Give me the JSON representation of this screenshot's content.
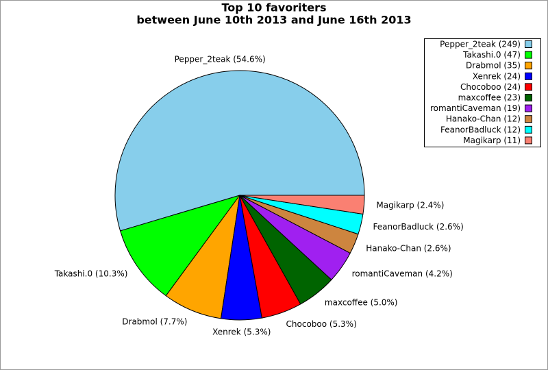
{
  "chart_data": {
    "type": "pie",
    "title": "Top 10 favoriters",
    "subtitle": "between June 10th 2013 and June 16th 2013",
    "values": [
      249,
      47,
      35,
      24,
      24,
      23,
      19,
      12,
      12,
      11
    ],
    "slice_labels": [
      "Pepper_2teak (54.6%)",
      "Takashi.0 (10.3%)",
      "Drabmol (7.7%)",
      "Xenrek (5.3%)",
      "Chocoboo (5.3%)",
      "maxcoffee (5.0%)",
      "romantiCaveman (4.2%)",
      "Hanako-Chan (2.6%)",
      "FeanorBadluck (2.6%)",
      "Magikarp (2.4%)"
    ],
    "legend_labels": [
      "Pepper_2teak (249)",
      "Takashi.0 (47)",
      "Drabmol (35)",
      "Xenrek (24)",
      "Chocoboo (24)",
      "maxcoffee (23)",
      "romantiCaveman (19)",
      "Hanako-Chan (12)",
      "FeanorBadluck (12)",
      "Magikarp (11)"
    ],
    "colors": [
      "#87ceeb",
      "#00ff00",
      "#ffa500",
      "#0000ff",
      "#ff0000",
      "#006400",
      "#a020f0",
      "#cd853f",
      "#00ffff",
      "#fa8072"
    ],
    "legend": "upper right"
  }
}
